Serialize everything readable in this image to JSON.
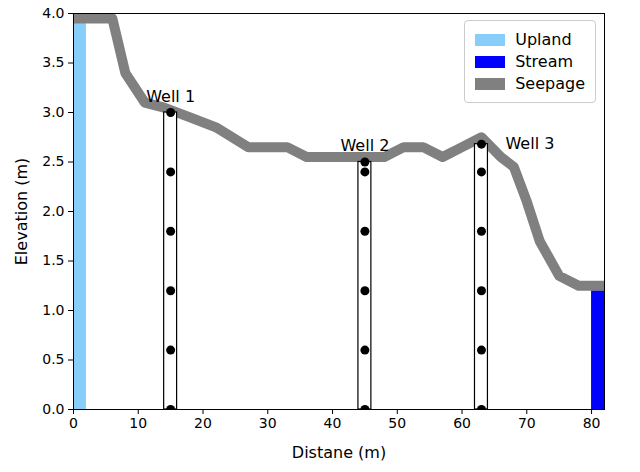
{
  "chart_data": {
    "type": "profile",
    "x_label": "Distane (m)",
    "y_label": "Elevation (m)",
    "xlim": [
      0,
      82
    ],
    "ylim": [
      0,
      4.0
    ],
    "xticks": [
      0,
      10,
      20,
      30,
      40,
      50,
      60,
      70,
      80
    ],
    "yticks": [
      {
        "value": 0,
        "label": "0.0"
      },
      {
        "value": 0.5,
        "label": "0.5"
      },
      {
        "value": 1,
        "label": "1.0"
      },
      {
        "value": 1.5,
        "label": "1.5"
      },
      {
        "value": 2,
        "label": "2.0"
      },
      {
        "value": 2.5,
        "label": "2.5"
      },
      {
        "value": 3,
        "label": "3.0"
      },
      {
        "value": 3.5,
        "label": "3.5"
      },
      {
        "value": 4,
        "label": "4.0"
      }
    ],
    "legend": "upper right",
    "series": [
      {
        "name": "Upland",
        "color": "#87cefa",
        "type": "bar",
        "x": [
          0,
          2
        ],
        "y": [
          0,
          3.95
        ]
      },
      {
        "name": "Stream",
        "color": "#0000ff",
        "type": "bar",
        "x": [
          80,
          82
        ],
        "y": [
          0,
          1.2
        ]
      },
      {
        "name": "Seepage",
        "color": "#808080",
        "type": "line",
        "x": [
          0,
          6,
          8,
          11,
          14,
          18,
          22,
          27,
          33,
          36,
          42,
          48,
          51,
          54,
          57,
          60,
          63,
          66,
          68,
          70,
          72,
          75,
          78,
          82
        ],
        "values": [
          3.95,
          3.95,
          3.4,
          3.1,
          3.05,
          2.95,
          2.85,
          2.65,
          2.65,
          2.55,
          2.55,
          2.55,
          2.65,
          2.65,
          2.55,
          2.65,
          2.75,
          2.55,
          2.45,
          2.1,
          1.7,
          1.35,
          1.25,
          1.25
        ]
      }
    ],
    "wells": [
      {
        "name": "Well 1",
        "x": [
          14,
          16
        ],
        "y": [
          0,
          3.0
        ],
        "sensors": [
          3.0,
          2.4,
          1.8,
          1.2,
          0.6,
          0.0
        ]
      },
      {
        "name": "Well 2",
        "x": [
          44,
          46
        ],
        "y": [
          0,
          2.5
        ],
        "sensors": [
          2.5,
          2.4,
          1.8,
          1.2,
          0.6,
          0.0
        ]
      },
      {
        "name": "Well 3",
        "x": [
          62,
          64
        ],
        "y": [
          0,
          2.68
        ],
        "sensors": [
          2.68,
          2.4,
          1.8,
          1.2,
          0.6,
          0.0
        ]
      }
    ]
  }
}
